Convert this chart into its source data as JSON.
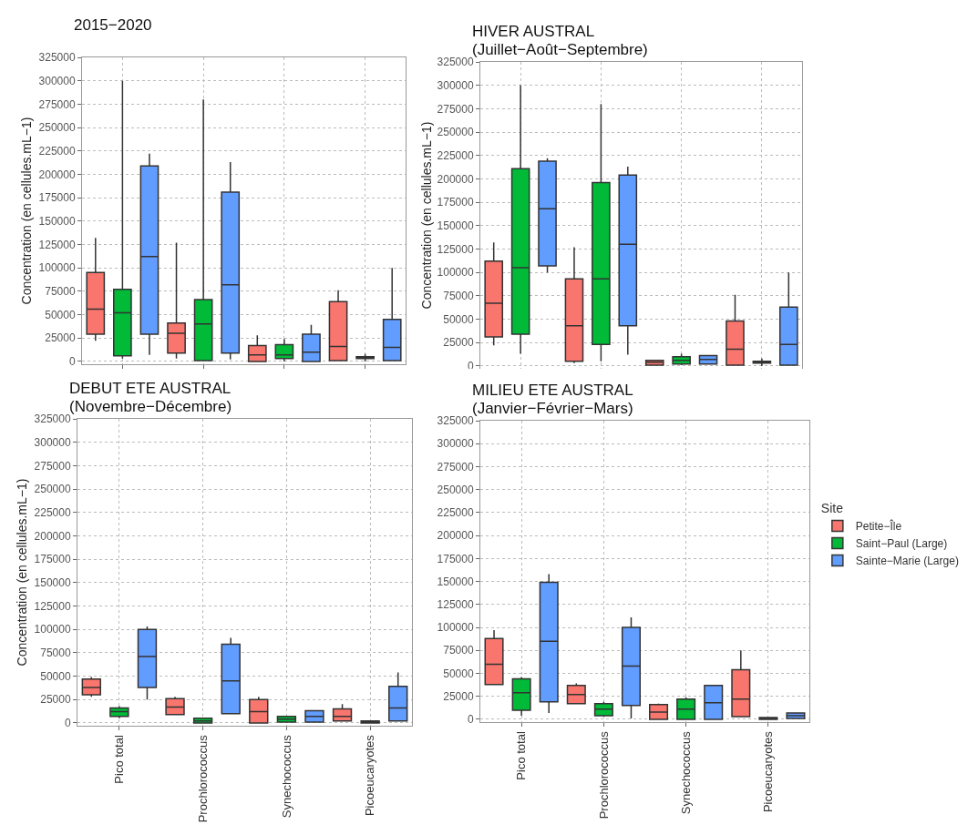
{
  "chart_data": [
    {
      "type": "box",
      "title": "2015−2020",
      "ylabel": "Concentration (en cellules.mL−1)",
      "categories": [
        null,
        null,
        null,
        null
      ],
      "ylim": [
        -3000,
        325000
      ],
      "yticks": [
        0,
        25000,
        50000,
        75000,
        100000,
        125000,
        150000,
        175000,
        200000,
        225000,
        250000,
        275000,
        300000,
        325000
      ],
      "grid": true,
      "tick_labels": "y",
      "series": [
        {
          "color": "#f8766d",
          "boxes": [
            {
              "low": 22000,
              "q1": 29000,
              "median": 56000,
              "q3": 95000,
              "high": 132000
            },
            {
              "low": 3000,
              "q1": 9000,
              "median": 30000,
              "q3": 41000,
              "high": 127000
            },
            {
              "low": 0,
              "q1": 0,
              "median": 7000,
              "q3": 17000,
              "high": 28000
            },
            {
              "low": 1000,
              "q1": 1000,
              "median": 16000,
              "q3": 64000,
              "high": 76000
            }
          ]
        },
        {
          "color": "#00ba38",
          "boxes": [
            {
              "low": 3000,
              "q1": 6000,
              "median": 52000,
              "q3": 77000,
              "high": 300000
            },
            {
              "low": 1000,
              "q1": 1000,
              "median": 40000,
              "q3": 66000,
              "high": 280000
            },
            {
              "low": 0,
              "q1": 3000,
              "median": 7000,
              "q3": 18000,
              "high": 24000
            },
            {
              "low": 0,
              "q1": 3000,
              "median": 4000,
              "q3": 5000,
              "high": 8000
            }
          ]
        },
        {
          "color": "#619cff",
          "boxes": [
            {
              "low": 7000,
              "q1": 29000,
              "median": 112000,
              "q3": 209000,
              "high": 222000
            },
            {
              "low": 2000,
              "q1": 9000,
              "median": 82000,
              "q3": 181000,
              "high": 213000
            },
            {
              "low": 0,
              "q1": 0,
              "median": 10000,
              "q3": 29000,
              "high": 39000
            },
            {
              "low": 1000,
              "q1": 1000,
              "median": 15000,
              "q3": 45000,
              "high": 100000
            }
          ]
        }
      ]
    },
    {
      "type": "box",
      "title": "HIVER AUSTRAL",
      "subtitle": "(Juillet−Août−Septembre)",
      "ylabel": "Concentration (en cellules.mL−1)",
      "categories": [
        null,
        null,
        null,
        null
      ],
      "ylim": [
        -3000,
        325000
      ],
      "yticks": [
        0,
        25000,
        50000,
        75000,
        100000,
        125000,
        150000,
        175000,
        200000,
        225000,
        250000,
        275000,
        300000,
        325000
      ],
      "grid": true,
      "tick_labels": "y",
      "series": [
        {
          "color": "#f8766d",
          "boxes": [
            {
              "low": 22000,
              "q1": 31000,
              "median": 67000,
              "q3": 112000,
              "high": 132000
            },
            {
              "low": 3000,
              "q1": 5000,
              "median": 43000,
              "q3": 93000,
              "high": 127000
            },
            {
              "low": 1000,
              "q1": 1000,
              "median": 4000,
              "q3": 6000,
              "high": 6000
            },
            {
              "low": 1000,
              "q1": 1000,
              "median": 18000,
              "q3": 48000,
              "high": 76000
            }
          ]
        },
        {
          "color": "#00ba38",
          "boxes": [
            {
              "low": 13000,
              "q1": 34000,
              "median": 105000,
              "q3": 211000,
              "high": 300000
            },
            {
              "low": 5000,
              "q1": 23000,
              "median": 93000,
              "q3": 196000,
              "high": 280000
            },
            {
              "low": 1000,
              "q1": 2000,
              "median": 6000,
              "q3": 10000,
              "high": 13000
            },
            {
              "low": 0,
              "q1": 3000,
              "median": 4000,
              "q3": 5000,
              "high": 8000
            }
          ]
        },
        {
          "color": "#619cff",
          "boxes": [
            {
              "low": 100000,
              "q1": 107000,
              "median": 168000,
              "q3": 219000,
              "high": 222000
            },
            {
              "low": 12000,
              "q1": 43000,
              "median": 130000,
              "q3": 204000,
              "high": 213000
            },
            {
              "low": 2000,
              "q1": 2000,
              "median": 7000,
              "q3": 11000,
              "high": 11000
            },
            {
              "low": 1000,
              "q1": 1000,
              "median": 23000,
              "q3": 63000,
              "high": 100000
            }
          ]
        }
      ]
    },
    {
      "type": "box",
      "title": "DEBUT ETE AUSTRAL",
      "subtitle": "(Novembre−Décembre)",
      "ylabel": "Concentration (en cellules.mL−1)",
      "categories": [
        "Pico total",
        "Prochlorococcus",
        "Synechococcus",
        "Picoeucaryotes"
      ],
      "ylim": [
        -3000,
        325000
      ],
      "yticks": [
        0,
        25000,
        50000,
        75000,
        100000,
        125000,
        150000,
        175000,
        200000,
        225000,
        250000,
        275000,
        300000,
        325000
      ],
      "grid": true,
      "series": [
        {
          "color": "#f8766d",
          "boxes": [
            {
              "low": 28000,
              "q1": 30000,
              "median": 38000,
              "q3": 47000,
              "high": 49000
            },
            {
              "low": 9000,
              "q1": 9000,
              "median": 17000,
              "q3": 26000,
              "high": 28000
            },
            {
              "low": 0,
              "q1": 0,
              "median": 12000,
              "q3": 25000,
              "high": 28000
            },
            {
              "low": 2000,
              "q1": 2000,
              "median": 7000,
              "q3": 15000,
              "high": 20000
            }
          ]
        },
        {
          "color": "#00ba38",
          "boxes": [
            {
              "low": 5000,
              "q1": 7000,
              "median": 12000,
              "q3": 16000,
              "high": 18000
            },
            {
              "low": 0,
              "q1": 0,
              "median": 2000,
              "q3": 5000,
              "high": 5000
            },
            {
              "low": 1000,
              "q1": 1000,
              "median": 4000,
              "q3": 7000,
              "high": 7000
            },
            {
              "low": 0,
              "q1": 0,
              "median": 1000,
              "q3": 2000,
              "high": 2000
            }
          ]
        },
        {
          "color": "#619cff",
          "boxes": [
            {
              "low": 25000,
              "q1": 38000,
              "median": 71000,
              "q3": 100000,
              "high": 103000
            },
            {
              "low": 10000,
              "q1": 10000,
              "median": 45000,
              "q3": 84000,
              "high": 91000
            },
            {
              "low": 1000,
              "q1": 1000,
              "median": 7000,
              "q3": 13000,
              "high": 13000
            },
            {
              "low": 2000,
              "q1": 2000,
              "median": 16000,
              "q3": 39000,
              "high": 54000
            }
          ]
        }
      ]
    },
    {
      "type": "box",
      "title": "MILIEU ETE AUSTRAL",
      "subtitle": "(Janvier−Février−Mars)",
      "legend_title": "Site",
      "legend": "right",
      "categories": [
        "Pico total",
        "Prochlorococcus",
        "Synechococcus",
        "Picoeucaryotes"
      ],
      "ylim": [
        -3000,
        325000
      ],
      "yticks": [
        0,
        25000,
        50000,
        75000,
        100000,
        125000,
        150000,
        175000,
        200000,
        225000,
        250000,
        275000,
        300000,
        325000
      ],
      "grid": true,
      "series": [
        {
          "name": "Petite−Île",
          "color": "#f8766d",
          "boxes": [
            {
              "low": 38000,
              "q1": 38000,
              "median": 60000,
              "q3": 88000,
              "high": 97000
            },
            {
              "low": 17000,
              "q1": 17000,
              "median": 27000,
              "q3": 37000,
              "high": 39000
            },
            {
              "low": 0,
              "q1": 0,
              "median": 8000,
              "q3": 16000,
              "high": 17000
            },
            {
              "low": 3000,
              "q1": 3000,
              "median": 22000,
              "q3": 54000,
              "high": 75000
            }
          ]
        },
        {
          "name": "Saint−Paul (Large)",
          "color": "#00ba38",
          "boxes": [
            {
              "low": 4000,
              "q1": 10000,
              "median": 29000,
              "q3": 44000,
              "high": 46000
            },
            {
              "low": 3000,
              "q1": 4000,
              "median": 11000,
              "q3": 17000,
              "high": 19000
            },
            {
              "low": 0,
              "q1": 0,
              "median": 11000,
              "q3": 22000,
              "high": 24000
            },
            {
              "low": 0,
              "q1": 0,
              "median": 1000,
              "q3": 2000,
              "high": 2000
            }
          ]
        },
        {
          "name": "Sainte−Marie (Large)",
          "color": "#619cff",
          "boxes": [
            {
              "low": 7000,
              "q1": 19000,
              "median": 85000,
              "q3": 149000,
              "high": 158000
            },
            {
              "low": 1000,
              "q1": 15000,
              "median": 58000,
              "q3": 100000,
              "high": 111000
            },
            {
              "low": 0,
              "q1": 0,
              "median": 18000,
              "q3": 37000,
              "high": 37000
            },
            {
              "low": 1000,
              "q1": 1000,
              "median": 4000,
              "q3": 7000,
              "high": 7000
            }
          ]
        }
      ]
    }
  ]
}
